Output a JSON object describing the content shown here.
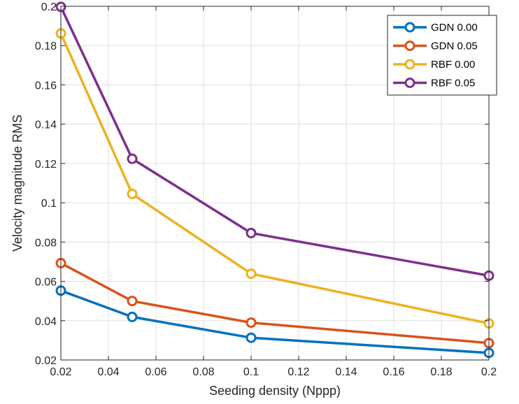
{
  "chart_data": {
    "type": "line",
    "xlabel": "Seeding density (Nppp)",
    "ylabel": "Velocity magnitude RMS",
    "xlim": [
      0.02,
      0.2
    ],
    "ylim": [
      0.02,
      0.2
    ],
    "xticks": [
      0.02,
      0.04,
      0.06,
      0.08,
      0.1,
      0.12,
      0.14,
      0.16,
      0.18,
      0.2
    ],
    "xtick_labels": [
      "0.02",
      "0.04",
      "0.06",
      "0.08",
      "0.1",
      "0.12",
      "0.14",
      "0.16",
      "0.18",
      "0.2"
    ],
    "yticks": [
      0.02,
      0.04,
      0.06,
      0.08,
      0.1,
      0.12,
      0.14,
      0.16,
      0.18,
      0.2
    ],
    "ytick_labels": [
      "0.02",
      "0.04",
      "0.06",
      "0.08",
      "0.1",
      "0.12",
      "0.14",
      "0.16",
      "0.18",
      "0.2"
    ],
    "grid": true,
    "legend_position": "top-right",
    "x": [
      0.02,
      0.05,
      0.1,
      0.2
    ],
    "series": [
      {
        "name": "GDN 0.00",
        "color": "#0072BD",
        "values": [
          0.0553,
          0.0419,
          0.0313,
          0.0236
        ]
      },
      {
        "name": "GDN 0.05",
        "color": "#D95319",
        "values": [
          0.0693,
          0.05,
          0.039,
          0.0286
        ]
      },
      {
        "name": "RBF 0.00",
        "color": "#EDB120",
        "values": [
          0.1862,
          0.1045,
          0.0639,
          0.0386
        ]
      },
      {
        "name": "RBF 0.05",
        "color": "#7E2F8E",
        "values": [
          0.1997,
          0.1224,
          0.0846,
          0.0629
        ]
      }
    ]
  }
}
